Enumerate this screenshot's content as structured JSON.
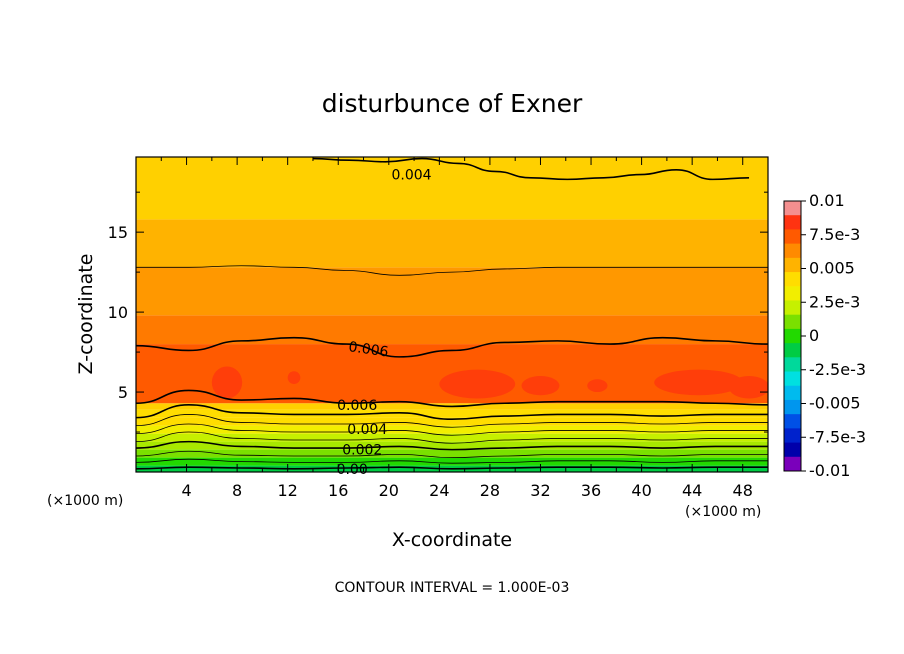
{
  "chart_data": {
    "type": "heatmap",
    "title": "disturbunce of Exner",
    "xlabel": "X-coordinate",
    "ylabel": "Z-coordinate",
    "x_unit": "(×1000 m)",
    "z_unit": "(×1000 m)",
    "xlim": [
      0,
      50
    ],
    "ylim": [
      0,
      19.7
    ],
    "x_ticks": [
      "4",
      "8",
      "12",
      "16",
      "20",
      "24",
      "28",
      "32",
      "36",
      "40",
      "44",
      "48"
    ],
    "y_ticks": [
      "5",
      "10",
      "15"
    ],
    "colorbar": {
      "range": [
        -0.01,
        0.01
      ],
      "tick_labels": [
        "0.01",
        "7.5e-3",
        "0.005",
        "2.5e-3",
        "0",
        "-2.5e-3",
        "-0.005",
        "-7.5e-3",
        "-0.01"
      ],
      "colors": [
        "#f48f8f",
        "#ff3311",
        "#ff5a00",
        "#ff8a00",
        "#ffb300",
        "#ffdd00",
        "#f2ee00",
        "#c6f000",
        "#7ae000",
        "#22d900",
        "#00cc44",
        "#00d99b",
        "#00e0e0",
        "#00bbee",
        "#0096ee",
        "#0050e6",
        "#0022cc",
        "#0000aa",
        "#7a00bb"
      ]
    },
    "contour_interval": "1.000E-03",
    "contour_labels": [
      "0.004",
      "0.006",
      "0.006",
      "0.004",
      "0.002",
      "0.00"
    ],
    "footer": "CONTOUR INTERVAL = 1.000E-03",
    "grid": false,
    "bands": [
      {
        "z_top": 0.4,
        "level": 0.0
      },
      {
        "z_top": 0.9,
        "level": 0.001
      },
      {
        "z_top": 1.4,
        "level": 0.0015
      },
      {
        "z_top": 1.9,
        "level": 0.002
      },
      {
        "z_top": 2.4,
        "level": 0.0025
      },
      {
        "z_top": 2.9,
        "level": 0.003
      },
      {
        "z_top": 3.4,
        "level": 0.0035
      },
      {
        "z_top": 3.9,
        "level": 0.004
      },
      {
        "z_top": 4.3,
        "level": 0.0045
      },
      {
        "z_top": 8.0,
        "level": 0.0065
      },
      {
        "z_top": 9.8,
        "level": 0.006
      },
      {
        "z_top": 12.8,
        "level": 0.0055
      },
      {
        "z_top": 15.8,
        "level": 0.005
      },
      {
        "z_top": 19.7,
        "level": 0.0045
      }
    ],
    "contours": [
      {
        "level": 0.0,
        "z": [
          0.2,
          0.3,
          0.25,
          0.2,
          0.25,
          0.3,
          0.2,
          0.25,
          0.3,
          0.3,
          0.25,
          0.3,
          0.3
        ]
      },
      {
        "level": 0.001,
        "z": [
          0.6,
          0.8,
          0.65,
          0.6,
          0.6,
          0.7,
          0.55,
          0.6,
          0.7,
          0.7,
          0.6,
          0.7,
          0.7
        ]
      },
      {
        "level": 0.0015,
        "z": [
          1.0,
          1.3,
          1.05,
          1.0,
          1.0,
          1.1,
          0.9,
          1.0,
          1.1,
          1.1,
          1.0,
          1.1,
          1.1
        ]
      },
      {
        "level": 0.002,
        "z": [
          1.5,
          1.9,
          1.6,
          1.5,
          1.5,
          1.6,
          1.4,
          1.5,
          1.6,
          1.6,
          1.5,
          1.6,
          1.6
        ]
      },
      {
        "level": 0.0025,
        "z": [
          1.9,
          2.5,
          2.1,
          2.0,
          2.0,
          2.1,
          1.8,
          2.0,
          2.1,
          2.1,
          2.0,
          2.1,
          2.1
        ]
      },
      {
        "level": 0.003,
        "z": [
          2.4,
          3.0,
          2.6,
          2.5,
          2.5,
          2.6,
          2.3,
          2.5,
          2.6,
          2.6,
          2.5,
          2.6,
          2.6
        ]
      },
      {
        "level": 0.0035,
        "z": [
          2.9,
          3.6,
          3.1,
          3.0,
          3.0,
          3.1,
          2.8,
          3.0,
          3.1,
          3.1,
          3.0,
          3.1,
          3.1
        ]
      },
      {
        "level": 0.004,
        "z": [
          3.4,
          4.2,
          3.7,
          3.6,
          3.6,
          3.7,
          3.3,
          3.5,
          3.6,
          3.6,
          3.5,
          3.6,
          3.6
        ]
      },
      {
        "level": 0.006,
        "z": [
          4.3,
          5.1,
          4.5,
          4.6,
          4.3,
          4.4,
          4.1,
          4.3,
          4.4,
          4.4,
          4.4,
          4.3,
          4.2
        ]
      },
      {
        "level": 0.006,
        "z": [
          7.9,
          7.6,
          8.2,
          8.4,
          8.0,
          7.2,
          7.6,
          8.1,
          8.2,
          8.0,
          8.4,
          8.2,
          8.0
        ]
      },
      {
        "level": 0.005,
        "z": [
          12.8,
          12.8,
          12.9,
          12.8,
          12.6,
          12.3,
          12.5,
          12.7,
          12.8,
          12.8,
          12.8,
          12.8,
          12.8
        ]
      },
      {
        "level": 0.004,
        "z": [
          19.6,
          19.5,
          19.4,
          19.6,
          19.3,
          18.8,
          18.4,
          18.3,
          18.4,
          18.6,
          18.9,
          18.3,
          18.4
        ],
        "x_range": [
          14,
          48.5
        ]
      }
    ]
  }
}
